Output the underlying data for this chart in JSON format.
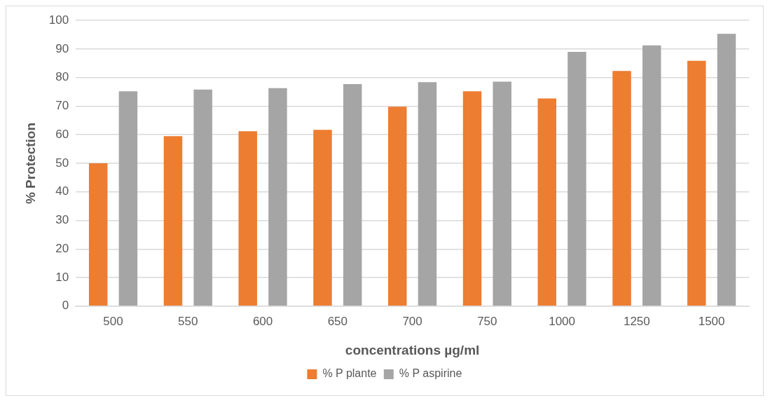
{
  "chart_data": {
    "type": "bar",
    "xlabel": "concentrations µg/ml",
    "ylabel": "% Protection",
    "categories": [
      "500",
      "550",
      "600",
      "650",
      "700",
      "750",
      "1000",
      "1250",
      "1500"
    ],
    "series": [
      {
        "name": "% P plante",
        "color": "#ed7d31",
        "values": [
          50.0,
          59.5,
          61.2,
          61.7,
          69.8,
          75.2,
          72.7,
          82.3,
          85.9
        ]
      },
      {
        "name": "% P aspirine",
        "color": "#a5a5a5",
        "values": [
          75.2,
          75.8,
          76.3,
          77.7,
          78.4,
          78.6,
          89.0,
          91.3,
          95.3
        ]
      }
    ],
    "ylim": [
      0,
      100
    ],
    "yticks": [
      0,
      10,
      20,
      30,
      40,
      50,
      60,
      70,
      80,
      90,
      100
    ],
    "grid": "y",
    "legend": "bottom"
  }
}
